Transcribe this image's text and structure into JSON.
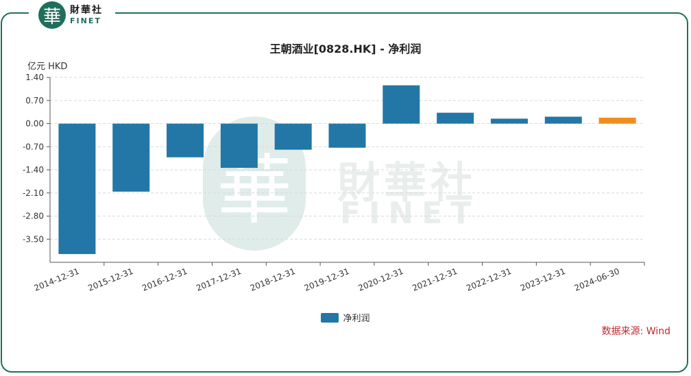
{
  "brand": {
    "seal_char": "華",
    "name_cn": "財華社",
    "name_en": "FINET"
  },
  "source": "数据来源: Wind",
  "colors": {
    "bar": "#2277a6",
    "highlight": "#f28c1e",
    "frame": "#1f6e5c"
  },
  "chart_data": {
    "type": "bar",
    "title": "王朝酒业[0828.HK] - 净利润",
    "ylabel": "亿元  HKD",
    "xlabel": "",
    "categories": [
      "2014-12-31",
      "2015-12-31",
      "2016-12-31",
      "2017-12-31",
      "2018-12-31",
      "2019-12-31",
      "2020-12-31",
      "2021-12-31",
      "2022-12-31",
      "2023-12-31",
      "2024-06-30"
    ],
    "series": [
      {
        "name": "净利润",
        "values": [
          -3.95,
          -2.06,
          -1.02,
          -1.34,
          -0.79,
          -0.73,
          1.16,
          0.33,
          0.15,
          0.21,
          0.18
        ]
      }
    ],
    "highlight_index": 10,
    "yticks": [
      "1.40",
      "0.70",
      "0.00",
      "-0.70",
      "-1.40",
      "-2.10",
      "-2.80",
      "-3.50"
    ],
    "ylim": [
      -4.2,
      1.4
    ],
    "grid": true,
    "legend": "bottom-center"
  }
}
